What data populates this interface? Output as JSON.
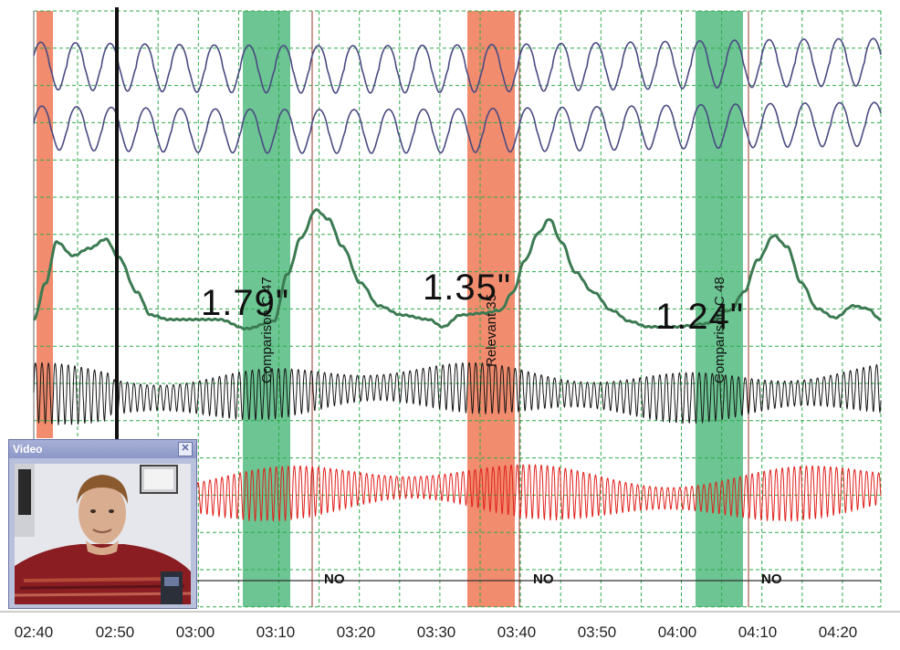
{
  "time_axis": {
    "labels": [
      "02:40",
      "02:50",
      "03:00",
      "03:10",
      "03:20",
      "03:30",
      "03:40",
      "03:50",
      "04:00",
      "04:10",
      "04:20"
    ]
  },
  "questions": [
    {
      "label": "Comparison C 47",
      "type": "comparison",
      "color": "#6cc593",
      "answer": "NO",
      "response": "1.79\""
    },
    {
      "label": "Relevant 35",
      "type": "relevant",
      "color": "#f28c6e",
      "answer": "NO",
      "response": "1.35\""
    },
    {
      "label": "Comparison C 48",
      "type": "comparison",
      "color": "#6cc593",
      "answer": "NO",
      "response": "1.24\""
    }
  ],
  "colors": {
    "pneumo": "#4a4a82",
    "eda": "#3c7a52",
    "cardio": "#151515",
    "plethysmograph": "#e0201c",
    "grid": "#2faa4a",
    "relevant_band": "#f28c6e",
    "comparison_band": "#6cc593"
  },
  "video_window": {
    "title": "Video",
    "close_icon": "close-icon",
    "content": "person-video-frame"
  }
}
